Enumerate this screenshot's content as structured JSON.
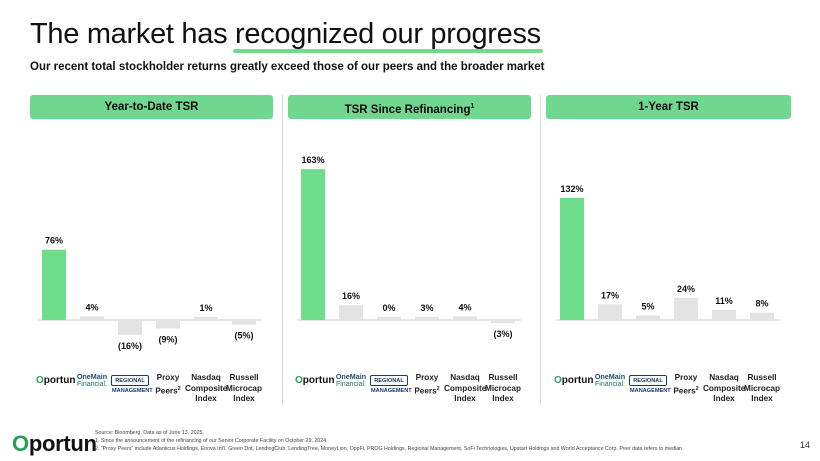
{
  "page": {
    "title_prefix": "The market has ",
    "title_highlight": "recognized our progress",
    "subtitle": "Our recent total stockholder returns greatly exceed those of our peers and the broader market",
    "page_number": "14",
    "footer_logo": "Oportun",
    "source_line": "Source: Bloomberg. Data as of June 13, 2025.",
    "footnote_1": "1.      Since the announcement of the refinancing of our Senior Corporate Facility on October 29, 2024.",
    "footnote_2": "2.      “Proxy Peers” include Atlanticus Holdings, Enova Int'l, Green Dot, LendingClub, LendingTree, MoneyLion, OppFi, PROG Holdings, Regional Management, SoFi Technologies, Upstart Holdings and World Acceptance Corp. Peer data refers to median.",
    "accent": "#6fd78f",
    "bar_positive": "#6ddc8b",
    "bar_other": "#e3e3e3"
  },
  "legend_labels": {
    "oportun": "Oportun",
    "onemain_line1": "OneMain",
    "onemain_line2": "Financial.",
    "regional": "REGIONAL MANAGEMENT",
    "proxy_line1": "Proxy",
    "proxy_line2": "Peers",
    "proxy_sup": "2",
    "nasdaq_line1": "Nasdaq",
    "nasdaq_line2": "Composite",
    "nasdaq_line3": "Index",
    "russell_line1": "Russell",
    "russell_line2": "Microcap",
    "russell_line3": "Index"
  },
  "chart_data": [
    {
      "type": "bar",
      "title": "Year-to-Date TSR",
      "categories": [
        "Oportun",
        "OneMain Financial",
        "Regional Management",
        "Proxy Peers",
        "Nasdaq Composite Index",
        "Russell Microcap Index"
      ],
      "values": [
        76,
        4,
        -16,
        -9,
        1,
        -5
      ],
      "labels": [
        "76%",
        "4%",
        "(16%)",
        "(9%)",
        "1%",
        "(5%)"
      ],
      "ylim": [
        -20,
        170
      ]
    },
    {
      "type": "bar",
      "title": "TSR Since Refinancing",
      "title_sup": "1",
      "categories": [
        "Oportun",
        "OneMain Financial",
        "Regional Management",
        "Proxy Peers",
        "Nasdaq Composite Index",
        "Russell Microcap Index"
      ],
      "values": [
        163,
        16,
        0,
        3,
        4,
        -3
      ],
      "labels": [
        "163%",
        "16%",
        "0%",
        "3%",
        "4%",
        "(3%)"
      ],
      "ylim": [
        -20,
        170
      ]
    },
    {
      "type": "bar",
      "title": "1-Year TSR",
      "categories": [
        "Oportun",
        "OneMain Financial",
        "Regional Management",
        "Proxy Peers",
        "Nasdaq Composite Index",
        "Russell Microcap Index"
      ],
      "values": [
        132,
        17,
        5,
        24,
        11,
        8
      ],
      "labels": [
        "132%",
        "17%",
        "5%",
        "24%",
        "11%",
        "8%"
      ],
      "ylim": [
        -20,
        170
      ]
    }
  ]
}
